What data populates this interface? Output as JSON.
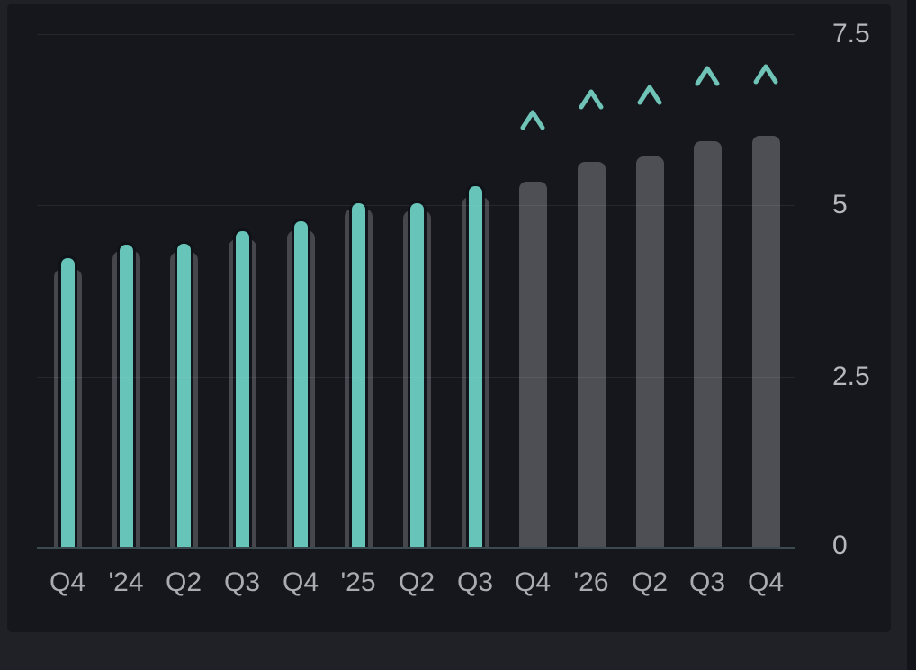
{
  "window": {
    "background_outer": "#1f2126",
    "panel_background": "#16171c",
    "right_edge_strip": "#13141a"
  },
  "chart_data": {
    "type": "bar",
    "title": "",
    "subtitle": "",
    "xlabel": "",
    "ylabel": "",
    "axis_side": "right",
    "ylim": [
      0,
      7.5
    ],
    "grid": "horizontal",
    "legend": "none",
    "categories": [
      "Q4",
      "'24",
      "Q2",
      "Q3",
      "Q4",
      "'25",
      "Q2",
      "Q3",
      "Q4",
      "'26",
      "Q2",
      "Q3",
      "Q4"
    ],
    "yticks": [
      {
        "value": 7.5,
        "label": "7.5"
      },
      {
        "value": 5,
        "label": "5"
      },
      {
        "value": 2.5,
        "label": "2.5"
      },
      {
        "value": 0,
        "label": "0"
      }
    ],
    "series": [
      {
        "name": "actual",
        "style": "narrow-bar",
        "color": "#66c4b8",
        "values": [
          4.23,
          4.43,
          4.44,
          4.62,
          4.77,
          5.03,
          5.03,
          5.28,
          null,
          null,
          null,
          null,
          null
        ]
      },
      {
        "name": "estimate-past",
        "style": "wide-bar-behind",
        "color": "#46464d",
        "values": [
          4.07,
          4.33,
          4.32,
          4.51,
          4.64,
          4.95,
          4.93,
          5.12,
          null,
          null,
          null,
          null,
          null
        ]
      },
      {
        "name": "estimate-future",
        "style": "wide-bar",
        "color": "#4e4e55",
        "values": [
          null,
          null,
          null,
          null,
          null,
          null,
          null,
          null,
          5.35,
          5.63,
          5.71,
          5.94,
          6.02
        ]
      },
      {
        "name": "high-estimate-marker",
        "style": "chevron-up",
        "color": "#6fc3b7",
        "values": [
          null,
          null,
          null,
          null,
          null,
          null,
          null,
          null,
          6.25,
          6.55,
          6.62,
          6.9,
          6.92
        ]
      }
    ],
    "colors": {
      "gridline": "rgba(205,212,235,0.09)",
      "axis_line": "#3b4a4e",
      "tick_label": "#aaacb0"
    }
  }
}
